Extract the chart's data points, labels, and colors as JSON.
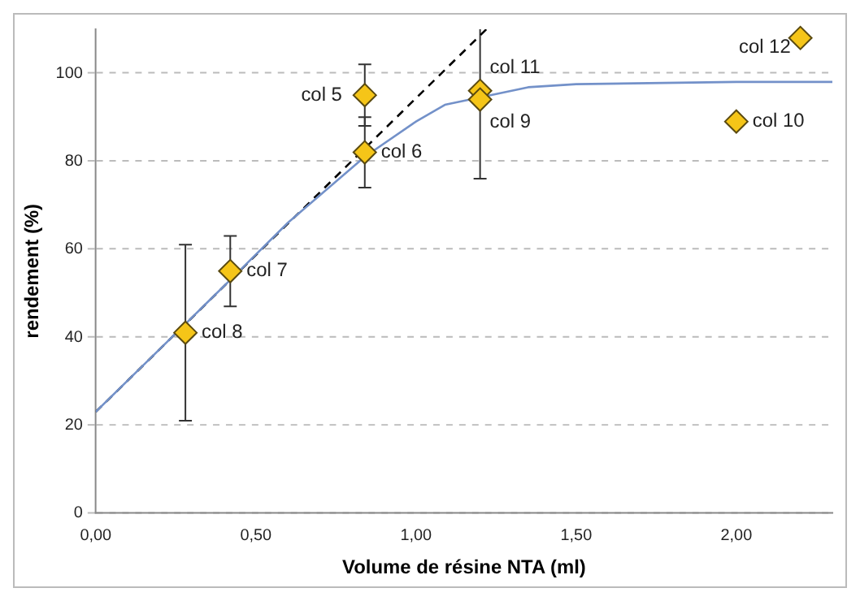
{
  "chart_data": {
    "type": "scatter",
    "xlabel": "Volume de résine NTA (ml)",
    "ylabel": "rendement (%)",
    "series": [
      {
        "type": "line",
        "color": "#7391c9",
        "marker": "none",
        "line_style": "solid",
        "x": [
          0,
          0.28,
          0.42,
          0.6,
          0.84,
          1.0,
          1.09,
          1.35,
          1.5,
          2.0,
          2.3
        ],
        "values": [
          23,
          43,
          53,
          66,
          81,
          89,
          92.8,
          96.8,
          97.5,
          98,
          98
        ]
      },
      {
        "type": "line",
        "color": "#000000",
        "marker": "none",
        "line_style": "dashed",
        "x": [
          0,
          1.22
        ],
        "values": [
          23,
          110
        ]
      },
      {
        "color": "#f5c518",
        "marker": "diamond",
        "x": [
          0.28,
          0.42,
          0.84,
          0.84,
          1.2,
          1.2,
          2.0,
          2.2
        ],
        "values": [
          41,
          55,
          95,
          82,
          96,
          94,
          89,
          108
        ],
        "errors": [
          20,
          8,
          7,
          8,
          null,
          [
            76,
            110
          ],
          null,
          null
        ]
      }
    ],
    "annotations": [
      {
        "text": "col 8",
        "x": 0.28,
        "y": 41
      },
      {
        "text": "col 7",
        "x": 0.42,
        "y": 55
      },
      {
        "text": "col 5",
        "x": 0.84,
        "y": 95
      },
      {
        "text": "col 6",
        "x": 0.84,
        "y": 82
      },
      {
        "text": "col 11",
        "x": 1.2,
        "y": 96
      },
      {
        "text": "col 9",
        "x": 1.2,
        "y": 94
      },
      {
        "text": "col 10",
        "x": 2.0,
        "y": 89
      },
      {
        "text": "col 12",
        "x": 2.2,
        "y": 108
      }
    ],
    "xlim": [
      0,
      2.3
    ],
    "xticks": [
      {
        "value": 0,
        "label": "0,00"
      },
      {
        "value": 0.5,
        "label": "0,50"
      },
      {
        "value": 1,
        "label": "1,00"
      },
      {
        "value": 1.5,
        "label": "1,50"
      },
      {
        "value": 2,
        "label": "2,00"
      }
    ],
    "ylim": [
      0,
      110
    ],
    "yticks": [
      0,
      20,
      40,
      60,
      80,
      100
    ],
    "grid": "y",
    "legend": false
  }
}
